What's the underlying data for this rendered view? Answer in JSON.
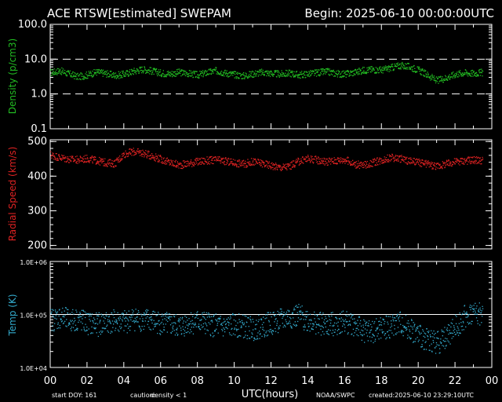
{
  "header": {
    "title": "ACE RTSW[Estimated] SWEPAM",
    "begin": "Begin: 2025-06-10 00:00:00UTC"
  },
  "footer": {
    "start_doy": "start DOY: 161",
    "caution_label": "caution:",
    "caution_value": "density < 1",
    "source": "NOAA/SWPC",
    "created": "created:2025-06-10 23:29:10UTC"
  },
  "colors": {
    "density": "#22bb22",
    "speed": "#dd2222",
    "temp": "#33aacc",
    "axes": "#ffffff",
    "caution_value": "#ffff00"
  },
  "chart_data": [
    {
      "type": "scatter",
      "name": "density-panel",
      "ylabel": "Density (p/cm3)",
      "yscale": "log",
      "ylim": [
        0.1,
        100
      ],
      "yticks": [
        "100.0",
        "10.0",
        "1.0",
        "0.1"
      ],
      "reference_lines": [
        10,
        1
      ],
      "x_range": [
        0,
        24
      ],
      "points": [
        [
          0,
          4.2
        ],
        [
          0.5,
          4.8
        ],
        [
          1,
          3.9
        ],
        [
          1.5,
          3.2
        ],
        [
          2,
          3.6
        ],
        [
          2.5,
          4.4
        ],
        [
          3,
          4.0
        ],
        [
          3.5,
          3.5
        ],
        [
          4,
          3.8
        ],
        [
          4.5,
          4.6
        ],
        [
          5,
          5.3
        ],
        [
          5.5,
          4.7
        ],
        [
          6,
          4.1
        ],
        [
          6.5,
          3.9
        ],
        [
          7,
          4.3
        ],
        [
          7.5,
          4.0
        ],
        [
          8,
          3.6
        ],
        [
          8.5,
          4.2
        ],
        [
          9,
          4.8
        ],
        [
          9.5,
          4.1
        ],
        [
          10,
          3.7
        ],
        [
          10.5,
          3.4
        ],
        [
          11,
          3.9
        ],
        [
          11.5,
          4.3
        ],
        [
          12,
          4.0
        ],
        [
          12.5,
          3.8
        ],
        [
          13,
          4.1
        ],
        [
          13.5,
          3.6
        ],
        [
          14,
          3.9
        ],
        [
          14.5,
          4.2
        ],
        [
          15,
          4.5
        ],
        [
          15.5,
          4.0
        ],
        [
          16,
          3.8
        ],
        [
          16.5,
          4.3
        ],
        [
          17,
          4.9
        ],
        [
          17.5,
          5.2
        ],
        [
          18,
          5.0
        ],
        [
          18.5,
          5.8
        ],
        [
          19,
          6.8
        ],
        [
          19.5,
          6.2
        ],
        [
          20,
          5.0
        ],
        [
          20.5,
          3.6
        ],
        [
          21,
          2.5
        ],
        [
          21.5,
          3.0
        ],
        [
          22,
          3.8
        ],
        [
          22.5,
          4.2
        ],
        [
          23,
          4.0
        ],
        [
          23.5,
          4.3
        ]
      ]
    },
    {
      "type": "scatter",
      "name": "speed-panel",
      "ylabel": "Radial Speed (km/s)",
      "ylim": [
        190,
        505
      ],
      "yticks": [
        500,
        400,
        300,
        200
      ],
      "x_range": [
        0,
        24
      ],
      "points": [
        [
          0,
          463
        ],
        [
          0.5,
          455
        ],
        [
          1,
          450
        ],
        [
          1.5,
          448
        ],
        [
          2,
          452
        ],
        [
          2.5,
          446
        ],
        [
          3,
          440
        ],
        [
          3.5,
          438
        ],
        [
          4,
          465
        ],
        [
          4.5,
          472
        ],
        [
          5,
          468
        ],
        [
          5.5,
          460
        ],
        [
          6,
          450
        ],
        [
          6.5,
          440
        ],
        [
          7,
          433
        ],
        [
          7.5,
          438
        ],
        [
          8,
          443
        ],
        [
          8.5,
          446
        ],
        [
          9,
          448
        ],
        [
          9.5,
          444
        ],
        [
          10,
          440
        ],
        [
          10.5,
          436
        ],
        [
          11,
          443
        ],
        [
          11.5,
          438
        ],
        [
          12,
          432
        ],
        [
          12.5,
          426
        ],
        [
          13,
          430
        ],
        [
          13.5,
          444
        ],
        [
          14,
          452
        ],
        [
          14.5,
          448
        ],
        [
          15,
          443
        ],
        [
          15.5,
          446
        ],
        [
          16,
          449
        ],
        [
          16.5,
          436
        ],
        [
          17,
          432
        ],
        [
          17.5,
          440
        ],
        [
          18,
          448
        ],
        [
          18.5,
          455
        ],
        [
          19,
          452
        ],
        [
          19.5,
          445
        ],
        [
          20,
          440
        ],
        [
          20.5,
          436
        ],
        [
          21,
          430
        ],
        [
          21.5,
          436
        ],
        [
          22,
          443
        ],
        [
          22.5,
          446
        ],
        [
          23,
          448
        ],
        [
          23.5,
          446
        ]
      ]
    },
    {
      "type": "scatter",
      "name": "temp-panel",
      "ylabel": "Temp (K)",
      "yscale": "log",
      "ylim": [
        10000,
        1000000
      ],
      "yticks": [
        "1.0E+06",
        "1.0E+05",
        "1.0E+04"
      ],
      "reference_lines": [
        100000
      ],
      "x_range": [
        0,
        24
      ],
      "points": [
        [
          0,
          80000
        ],
        [
          0.5,
          90000
        ],
        [
          1,
          78000
        ],
        [
          1.5,
          82000
        ],
        [
          2,
          70000
        ],
        [
          2.5,
          65000
        ],
        [
          3,
          72000
        ],
        [
          3.5,
          75000
        ],
        [
          4,
          72000
        ],
        [
          4.5,
          85000
        ],
        [
          5,
          80000
        ],
        [
          5.5,
          78000
        ],
        [
          6,
          70000
        ],
        [
          6.5,
          65000
        ],
        [
          7,
          60000
        ],
        [
          7.5,
          72000
        ],
        [
          8,
          75000
        ],
        [
          8.5,
          68000
        ],
        [
          9,
          62000
        ],
        [
          9.5,
          58000
        ],
        [
          10,
          65000
        ],
        [
          10.5,
          60000
        ],
        [
          11,
          55000
        ],
        [
          11.5,
          62000
        ],
        [
          12,
          70000
        ],
        [
          12.5,
          78000
        ],
        [
          13,
          90000
        ],
        [
          13.5,
          95000
        ],
        [
          14,
          80000
        ],
        [
          14.5,
          70000
        ],
        [
          15,
          62000
        ],
        [
          15.5,
          70000
        ],
        [
          16,
          75000
        ],
        [
          16.5,
          65000
        ],
        [
          17,
          50000
        ],
        [
          17.5,
          48000
        ],
        [
          18,
          55000
        ],
        [
          18.5,
          60000
        ],
        [
          19,
          70000
        ],
        [
          19.5,
          55000
        ],
        [
          20,
          40000
        ],
        [
          20.5,
          35000
        ],
        [
          21,
          30000
        ],
        [
          21.5,
          38000
        ],
        [
          22,
          60000
        ],
        [
          22.5,
          90000
        ],
        [
          23,
          110000
        ],
        [
          23.5,
          100000
        ]
      ]
    }
  ],
  "x_axis": {
    "label": "UTC(hours)",
    "ticks": [
      "00",
      "02",
      "04",
      "06",
      "08",
      "10",
      "12",
      "14",
      "16",
      "18",
      "20",
      "22",
      "00"
    ]
  }
}
